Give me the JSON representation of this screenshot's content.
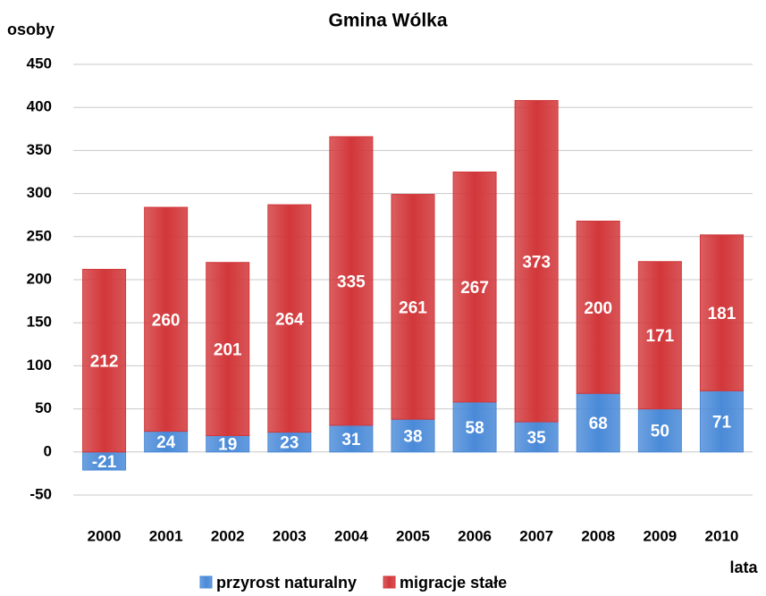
{
  "chart_data": {
    "type": "bar",
    "stacked": true,
    "title": "Gmina Wólka",
    "y_label": "osoby",
    "x_label": "lata",
    "categories": [
      "2000",
      "2001",
      "2002",
      "2003",
      "2004",
      "2005",
      "2006",
      "2007",
      "2008",
      "2009",
      "2010"
    ],
    "series": [
      {
        "name": "przyrost naturalny",
        "color": "#4a8ad8",
        "values": [
          -21,
          24,
          19,
          23,
          31,
          38,
          58,
          35,
          68,
          50,
          71
        ]
      },
      {
        "name": "migracje stałe",
        "color": "#d2373a",
        "values": [
          212,
          260,
          201,
          264,
          335,
          261,
          267,
          373,
          200,
          171,
          181
        ]
      }
    ],
    "ylim": [
      -50,
      450
    ],
    "yticks": [
      -50,
      0,
      50,
      100,
      150,
      200,
      250,
      300,
      350,
      400,
      450
    ],
    "grid": true,
    "legend": "bottom"
  }
}
